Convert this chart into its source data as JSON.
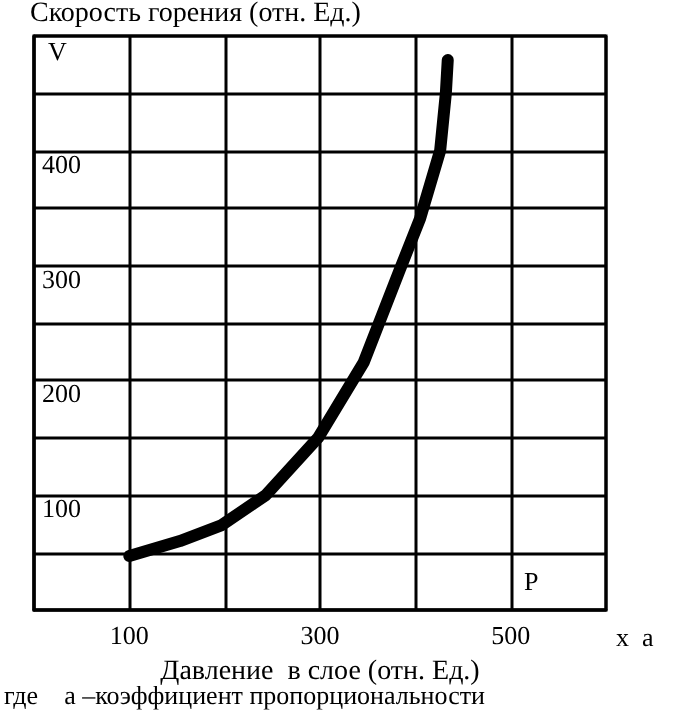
{
  "chart_data": {
    "type": "line",
    "ylabel": "Скорость горения (отн. Ед.)",
    "xlabel": "Давление  в слое (отн. Ед.)",
    "x": [
      100,
      153,
      197,
      243,
      298,
      346,
      384,
      405,
      426,
      432,
      434
    ],
    "series": [
      {
        "color": "#000000",
        "values": [
          47,
          60,
          74,
          100,
          150,
          216,
          297,
          341,
          400,
          450,
          479
        ]
      }
    ],
    "xlim": [
      0,
      600
    ],
    "ylim": [
      0,
      500
    ],
    "xticks": [
      {
        "value": 0,
        "label": null
      },
      100,
      {
        "value": 200,
        "label": null
      },
      300,
      {
        "value": 400,
        "label": null
      },
      500,
      {
        "value": 600,
        "label": null
      }
    ],
    "yticks": [
      {
        "value": 0,
        "label": null
      },
      {
        "value": 50,
        "label": null
      },
      100,
      {
        "value": 150,
        "label": null
      },
      200,
      {
        "value": 250,
        "label": null
      },
      300,
      {
        "value": 350,
        "label": null
      },
      400,
      {
        "value": 450,
        "label": null
      },
      {
        "value": 500,
        "label": null
      }
    ],
    "grid": true,
    "marker": "none",
    "line_style": "solid",
    "annotations": [
      "V",
      "P",
      "x  a",
      "где    а –коэффициент пропорциональности"
    ]
  }
}
